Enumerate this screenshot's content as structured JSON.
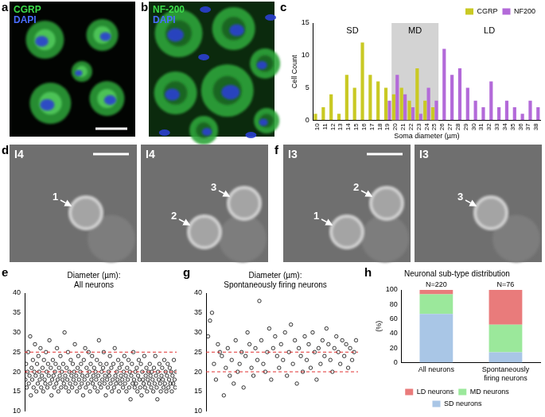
{
  "images": [
    {
      "panel": "a",
      "labels": [
        {
          "text": "CGRP",
          "color": "#3ddc4a"
        },
        {
          "text": "DAPI",
          "color": "#4a6dff"
        }
      ]
    },
    {
      "panel": "b",
      "labels": [
        {
          "text": "NF-200",
          "color": "#3ddc4a"
        },
        {
          "text": "DAPI",
          "color": "#4a6dff"
        }
      ]
    },
    {
      "panel": "d",
      "frames": [
        {
          "label": "I4",
          "markers": [
            "1"
          ]
        },
        {
          "label": "I4",
          "markers": [
            "2",
            "3"
          ]
        }
      ]
    },
    {
      "panel": "f",
      "frames": [
        {
          "label": "I3",
          "markers": [
            "1",
            "2"
          ]
        },
        {
          "label": "I3",
          "markers": [
            "3"
          ]
        }
      ]
    }
  ],
  "chart_data": [
    {
      "panel": "c",
      "type": "bar",
      "x_label": "Soma diameter (µm)",
      "y_label": "Cell Count",
      "categories": [
        10,
        11,
        12,
        13,
        14,
        15,
        16,
        17,
        18,
        19,
        20,
        21,
        22,
        23,
        24,
        25,
        26,
        27,
        28,
        29,
        30,
        31,
        32,
        33,
        34,
        35,
        36,
        37,
        38
      ],
      "series": [
        {
          "name": "CGRP",
          "color": "#c9c924",
          "values": [
            1,
            2,
            4,
            1,
            7,
            5,
            12,
            7,
            6,
            5,
            4,
            5,
            3,
            8,
            3,
            2,
            0,
            0,
            0,
            0,
            0,
            0,
            0,
            0,
            0,
            0,
            0,
            0,
            0
          ]
        },
        {
          "name": "NF200",
          "color": "#b36ad9",
          "values": [
            0,
            0,
            0,
            0,
            0,
            0,
            0,
            0,
            0,
            3,
            7,
            4,
            2,
            1,
            5,
            3,
            11,
            7,
            8,
            5,
            3,
            2,
            6,
            2,
            3,
            2,
            1,
            3,
            2
          ]
        }
      ],
      "regions": [
        {
          "label": "SD",
          "from": 10,
          "to": 19
        },
        {
          "label": "MD",
          "from": 20,
          "to": 25,
          "shaded": true
        },
        {
          "label": "LD",
          "from": 26,
          "to": 38
        }
      ],
      "ylim": [
        0,
        15
      ],
      "yticks": [
        0,
        5,
        10,
        15
      ],
      "legend": "upper right",
      "grid": false
    },
    {
      "panel": "e",
      "type": "scatter",
      "title": [
        "Diameter (µm):",
        "All neurons"
      ],
      "values": [
        18,
        22,
        16,
        20,
        25,
        17,
        19,
        29,
        14,
        21,
        18,
        23,
        16,
        20,
        27,
        19,
        15,
        22,
        17,
        24,
        20,
        18,
        26,
        16,
        19,
        21,
        15,
        23,
        18,
        17,
        25,
        20,
        16,
        22,
        19,
        28,
        17,
        21,
        14,
        18,
        23,
        19,
        16,
        20,
        22,
        17,
        26,
        18,
        15,
        21,
        19,
        24,
        16,
        20,
        18,
        22,
        17,
        30,
        19,
        16,
        21,
        18,
        25,
        15,
        20,
        17,
        23,
        19,
        16,
        22,
        18,
        20,
        27,
        17,
        19,
        15,
        21,
        24,
        18,
        16,
        20,
        22,
        17,
        19,
        14,
        23,
        18,
        26,
        16,
        21,
        19,
        17,
        25,
        20,
        15,
        22,
        18,
        24,
        17,
        19,
        21,
        16,
        20,
        18,
        23,
        15,
        19,
        28,
        17,
        22,
        16,
        20,
        18,
        21,
        25,
        17,
        19,
        14,
        22,
        18,
        16,
        20,
        19,
        24,
        17,
        21,
        15,
        18,
        22,
        16,
        26,
        19,
        17,
        20,
        18,
        23,
        15,
        21,
        17,
        19,
        22,
        18,
        16,
        20,
        24,
        17,
        19,
        15,
        21,
        18,
        23,
        16,
        20,
        13,
        19,
        22,
        17,
        25,
        18,
        16,
        20,
        17,
        21,
        15,
        19,
        23,
        18,
        16,
        22,
        14,
        20,
        18,
        17,
        24,
        16,
        19,
        21,
        15,
        18,
        20,
        17,
        22,
        19,
        16,
        20,
        18,
        15,
        21,
        17,
        24,
        19,
        16,
        13,
        20,
        18,
        22,
        17,
        15,
        19,
        21,
        18,
        16,
        23,
        17,
        20,
        15,
        19,
        22,
        16,
        18,
        21,
        17,
        20,
        15,
        19,
        17,
        23,
        18,
        16,
        20
      ],
      "color": "#000000",
      "marker": "circle_open",
      "thresholds": [
        {
          "value": 20,
          "color": "#e03030",
          "line_style": "dashed"
        },
        {
          "value": 25,
          "color": "#e03030",
          "line_style": "dashed"
        }
      ],
      "ylim": [
        10,
        40
      ],
      "yticks": [
        10,
        15,
        20,
        25,
        30,
        35,
        40
      ],
      "tick_labels": "y",
      "grid": false
    },
    {
      "panel": "g",
      "type": "scatter",
      "title": [
        "Diameter (µm):",
        "Spontaneously firing neurons"
      ],
      "values": [
        29,
        33,
        35,
        22,
        18,
        27,
        25,
        24,
        14,
        21,
        26,
        19,
        23,
        17,
        28,
        20,
        22,
        25,
        16,
        24,
        30,
        27,
        21,
        19,
        26,
        23,
        38,
        28,
        22,
        20,
        25,
        31,
        18,
        26,
        29,
        24,
        21,
        27,
        23,
        30,
        19,
        25,
        32,
        22,
        28,
        17,
        26,
        24,
        20,
        29,
        23,
        27,
        21,
        30,
        25,
        18,
        26,
        22,
        28,
        24,
        31,
        27,
        23,
        20,
        26,
        29,
        25,
        22,
        28,
        24,
        27,
        21,
        26,
        23,
        25,
        28
      ],
      "color": "#000000",
      "marker": "circle_open",
      "thresholds": [
        {
          "value": 20,
          "color": "#e03030",
          "line_style": "dashed"
        },
        {
          "value": 25,
          "color": "#e03030",
          "line_style": "dashed"
        }
      ],
      "ylim": [
        10,
        40
      ],
      "yticks": [
        10,
        15,
        20,
        25,
        30,
        35,
        40
      ],
      "tick_labels": "y",
      "grid": false
    },
    {
      "panel": "h",
      "type": "bar",
      "stacked": true,
      "title": "Neuronal sub-type distribution",
      "y_label": "(%)",
      "categories": [
        "All neurons",
        "Spontaneously firing neurons"
      ],
      "annotations": [
        "N=220",
        "N=76"
      ],
      "series": [
        {
          "name": "SD neurons",
          "color": "#a9c6e6",
          "values": [
            67,
            14
          ]
        },
        {
          "name": "MD neurons",
          "color": "#9be89b",
          "values": [
            27,
            38
          ]
        },
        {
          "name": "LD neurons",
          "color": "#e97b7b",
          "values": [
            6,
            48
          ]
        }
      ],
      "ylim": [
        0,
        100
      ],
      "yticks": [
        0,
        20,
        40,
        60,
        80,
        100
      ],
      "legend": "bottom",
      "grid": false
    }
  ]
}
